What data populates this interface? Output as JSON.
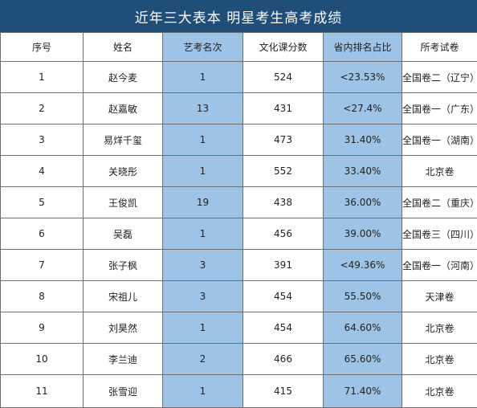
{
  "title": "近年三大表本 明星考生高考成绩",
  "headers": [
    "序号",
    "姓名",
    "艺考名次",
    "文化课分数",
    "省内排名占比",
    "所考试卷"
  ],
  "highlight_color": "#9dc3e6",
  "title_bar_color": "#1f4e79",
  "rows": [
    {
      "num": "1",
      "name": "赵今麦",
      "rank": "1",
      "score": "524",
      "pct": "<23.53%",
      "paper": "全国卷二（辽宁）"
    },
    {
      "num": "2",
      "name": "赵嘉敏",
      "rank": "13",
      "score": "431",
      "pct": "<27.4%",
      "paper": "全国卷一（广东）"
    },
    {
      "num": "3",
      "name": "易烊千玺",
      "rank": "1",
      "score": "473",
      "pct": "31.40%",
      "paper": "全国卷一（湖南）"
    },
    {
      "num": "4",
      "name": "关晓彤",
      "rank": "1",
      "score": "552",
      "pct": "33.40%",
      "paper": "北京卷"
    },
    {
      "num": "5",
      "name": "王俊凯",
      "rank": "19",
      "score": "438",
      "pct": "36.00%",
      "paper": "全国卷二（重庆）"
    },
    {
      "num": "6",
      "name": "吴磊",
      "rank": "1",
      "score": "456",
      "pct": "39.00%",
      "paper": "全国卷三（四川）"
    },
    {
      "num": "7",
      "name": "张子枫",
      "rank": "3",
      "score": "391",
      "pct": "<49.36%",
      "paper": "全国卷一（河南）"
    },
    {
      "num": "8",
      "name": "宋祖儿",
      "rank": "3",
      "score": "454",
      "pct": "55.50%",
      "paper": "天津卷"
    },
    {
      "num": "9",
      "name": "刘昊然",
      "rank": "1",
      "score": "454",
      "pct": "64.60%",
      "paper": "北京卷"
    },
    {
      "num": "10",
      "name": "李兰迪",
      "rank": "2",
      "score": "466",
      "pct": "65.60%",
      "paper": "北京卷"
    },
    {
      "num": "11",
      "name": "张雪迎",
      "rank": "1",
      "score": "415",
      "pct": "71.40%",
      "paper": "北京卷"
    }
  ]
}
